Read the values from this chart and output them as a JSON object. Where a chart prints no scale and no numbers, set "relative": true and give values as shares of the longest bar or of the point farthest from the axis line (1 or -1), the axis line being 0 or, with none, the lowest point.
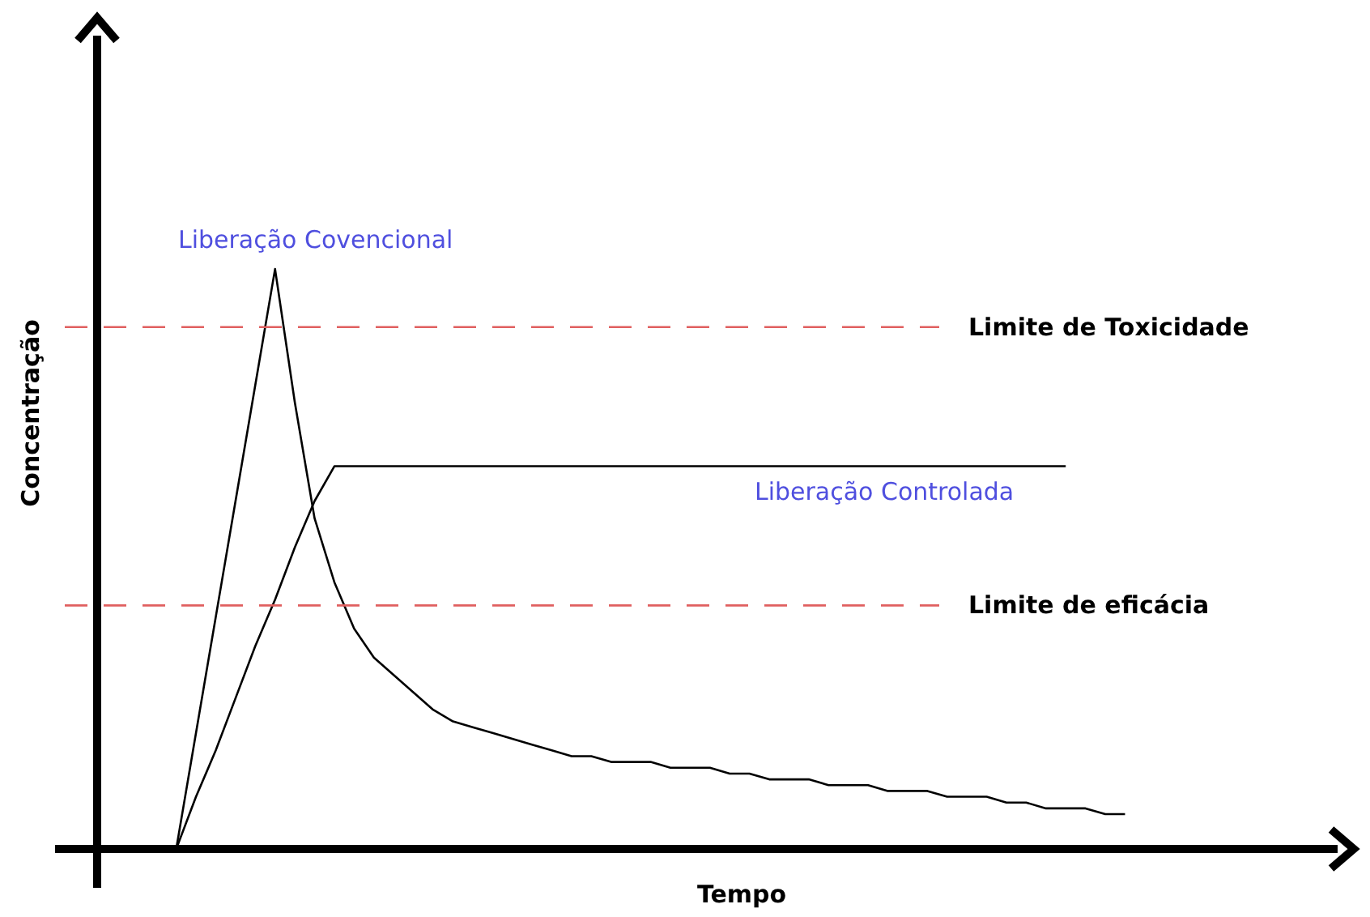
{
  "chart_data": {
    "type": "line",
    "relative": true,
    "xlabel": "Tempo",
    "ylabel": "Concentração",
    "legend": false,
    "marker": "none",
    "categories": [
      null,
      null,
      null,
      null,
      null,
      null,
      null,
      null,
      null,
      null,
      null,
      null,
      null,
      null,
      null,
      null,
      null,
      null,
      null,
      null,
      null,
      null,
      null,
      null,
      null,
      null,
      null,
      null,
      null,
      null,
      null,
      null,
      null,
      null,
      null,
      null,
      null,
      null,
      null,
      null,
      null,
      null,
      null,
      null,
      null,
      null,
      null,
      null,
      null,
      null,
      null,
      null,
      null,
      null,
      null,
      null,
      null,
      null,
      null,
      null,
      null,
      null,
      null,
      null
    ],
    "series": [
      {
        "name": "Liberação Covencional",
        "color": "#000000",
        "values": [
          null,
          null,
          null,
          null,
          0,
          0.2,
          0.4,
          0.6,
          0.8,
          1,
          0.77,
          0.57,
          0.46,
          0.38,
          0.33,
          0.3,
          0.27,
          0.24,
          0.22,
          0.21,
          0.2,
          0.19,
          0.18,
          0.17,
          0.16,
          0.16,
          0.15,
          0.15,
          0.15,
          0.14,
          0.14,
          0.14,
          0.13,
          0.13,
          0.12,
          0.12,
          0.12,
          0.11,
          0.11,
          0.11,
          0.1,
          0.1,
          0.1,
          0.09,
          0.09,
          0.09,
          0.08,
          0.08,
          0.07,
          0.07,
          0.07,
          0.06,
          0.06,
          null,
          null,
          null,
          null,
          null,
          null,
          null,
          null,
          null,
          null,
          null
        ]
      },
      {
        "name": "Liberação Controlada",
        "color": "#000000",
        "values": [
          null,
          null,
          null,
          null,
          0,
          0.09,
          0.17,
          0.26,
          0.35,
          0.43,
          0.52,
          0.6,
          0.66,
          0.66,
          0.66,
          0.66,
          0.66,
          0.66,
          0.66,
          0.66,
          0.66,
          0.66,
          0.66,
          0.66,
          0.66,
          0.66,
          0.66,
          0.66,
          0.66,
          0.66,
          0.66,
          0.66,
          0.66,
          0.66,
          0.66,
          0.66,
          0.66,
          0.66,
          0.66,
          0.66,
          0.66,
          0.66,
          0.66,
          0.66,
          0.66,
          0.66,
          0.66,
          0.66,
          0.66,
          0.66,
          null,
          null,
          null,
          null,
          null,
          null,
          null,
          null,
          null,
          null,
          null,
          null,
          null,
          null
        ]
      }
    ],
    "ref_lines": [
      {
        "axis": "y",
        "value": 0.9,
        "label": "Limite de Toxicidade",
        "color": "#e06060",
        "line_style": "dashed"
      },
      {
        "axis": "y",
        "value": 0.42,
        "label": "Limite de eficácia",
        "color": "#e06060",
        "line_style": "dashed"
      }
    ]
  }
}
